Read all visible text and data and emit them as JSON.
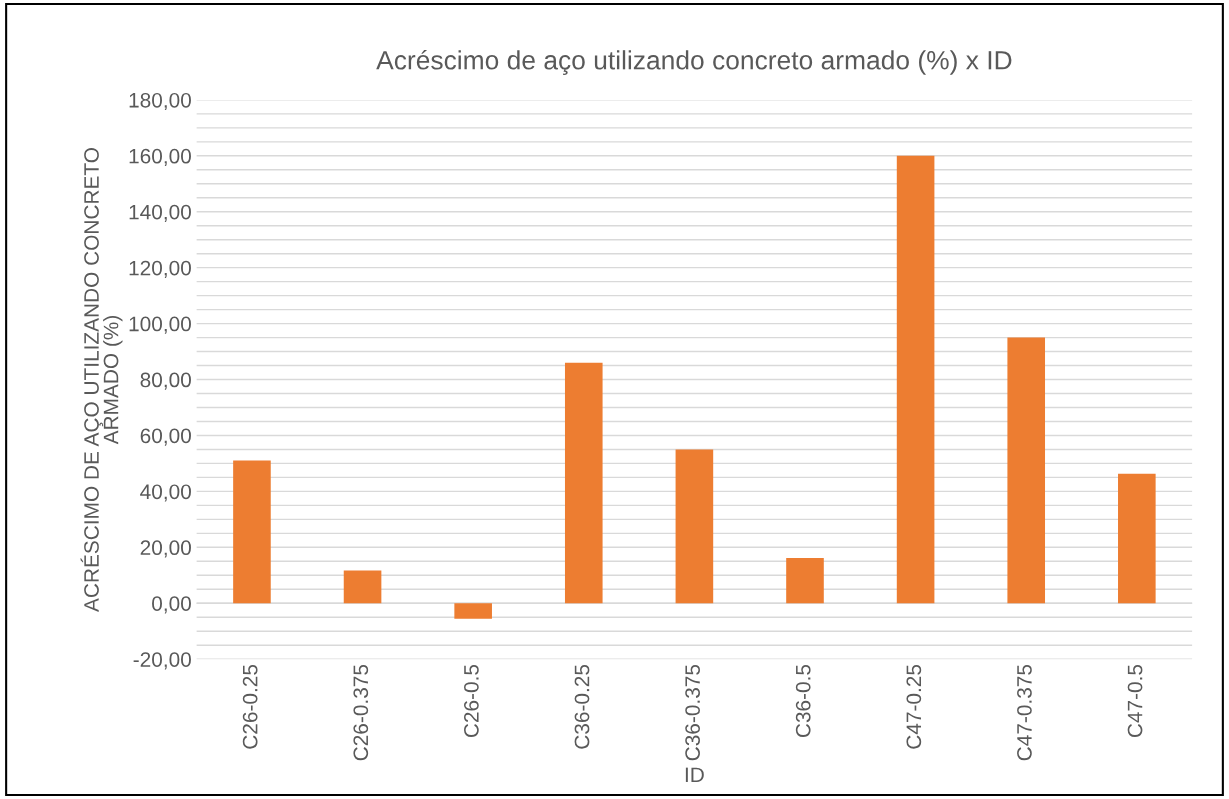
{
  "chart_data": {
    "type": "bar",
    "title": "Acréscimo de aço utilizando concreto armado (%) x ID",
    "xlabel": "ID",
    "ylabel": "ACRÉSCIMO DE AÇO UTILIZANDO CONCRETO\nARMADO (%)",
    "categories": [
      "C26-0.25",
      "C26-0.375",
      "C26-0.5",
      "C36-0.25",
      "C36-0.375",
      "C36-0.5",
      "C47-0.25",
      "C47-0.375",
      "C47-0.5"
    ],
    "values": [
      51,
      11.7,
      -5.5,
      86,
      55,
      16.2,
      160,
      95,
      46.3
    ],
    "color": "#ed7d31",
    "ylim": [
      -20,
      180
    ],
    "yticks": [
      {
        "value": -20,
        "label": "-20,00"
      },
      {
        "value": 0,
        "label": "0,00"
      },
      {
        "value": 20,
        "label": "20,00"
      },
      {
        "value": 40,
        "label": "40,00"
      },
      {
        "value": 60,
        "label": "60,00"
      },
      {
        "value": 80,
        "label": "80,00"
      },
      {
        "value": 100,
        "label": "100,00"
      },
      {
        "value": 120,
        "label": "120,00"
      },
      {
        "value": 140,
        "label": "140,00"
      },
      {
        "value": 160,
        "label": "160,00"
      },
      {
        "value": 180,
        "label": "180,00"
      }
    ],
    "grid": "y",
    "legend": false
  }
}
